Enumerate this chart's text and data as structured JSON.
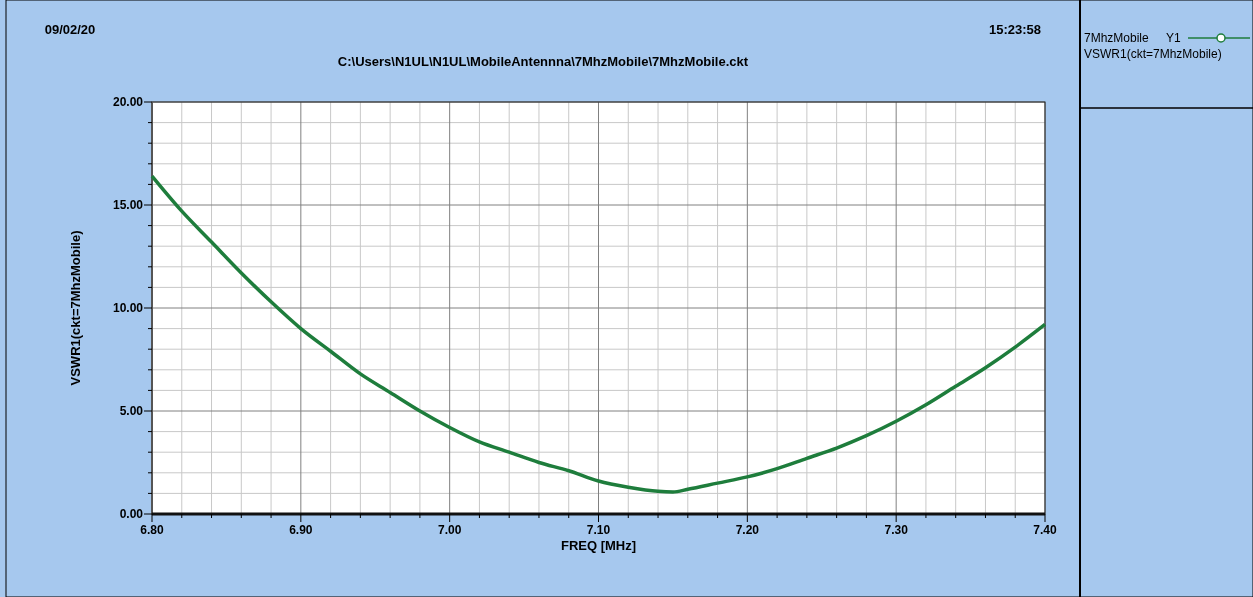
{
  "chart_data": {
    "type": "line",
    "title": "C:\\Users\\N1UL\\N1UL\\MobileAntennna\\7MhzMobile\\7MhzMobile.ckt",
    "annotations": [
      "09/02/20",
      "15:23:58",
      "VSWR1(ckt=7MhzMobile)"
    ],
    "xlabel": "FREQ [MHz]",
    "ylabel": "VSWR1(ckt=7MhzMobile)",
    "legend_title": "7MhzMobile",
    "legend": "right",
    "grid": true,
    "x": [
      6.8,
      6.82,
      6.84,
      6.86,
      6.88,
      6.9,
      6.92,
      6.94,
      6.96,
      6.98,
      7.0,
      7.02,
      7.04,
      7.06,
      7.08,
      7.1,
      7.12,
      7.14,
      7.15,
      7.16,
      7.18,
      7.2,
      7.22,
      7.24,
      7.26,
      7.28,
      7.3,
      7.32,
      7.34,
      7.36,
      7.38,
      7.4
    ],
    "series": [
      {
        "name": "Y1",
        "color": "#1e7d3c",
        "values": [
          16.4,
          14.7,
          13.2,
          11.7,
          10.3,
          9.0,
          7.9,
          6.8,
          5.9,
          5.0,
          4.2,
          3.5,
          3.0,
          2.5,
          2.1,
          1.6,
          1.3,
          1.1,
          1.07,
          1.2,
          1.5,
          1.8,
          2.2,
          2.7,
          3.2,
          3.8,
          4.5,
          5.3,
          6.2,
          7.1,
          8.1,
          9.2
        ]
      }
    ],
    "xlim": [
      6.8,
      7.4
    ],
    "xticks": [
      {
        "value": 6.8,
        "label": "6.80"
      },
      {
        "value": 6.9,
        "label": "6.90"
      },
      {
        "value": 7.0,
        "label": "7.00"
      },
      {
        "value": 7.1,
        "label": "7.10"
      },
      {
        "value": 7.2,
        "label": "7.20"
      },
      {
        "value": 7.3,
        "label": "7.30"
      },
      {
        "value": 7.4,
        "label": "7.40"
      }
    ],
    "ylim": [
      0,
      20
    ],
    "yticks": [
      {
        "value": 0,
        "label": "0.00"
      },
      {
        "value": 5,
        "label": "5.00"
      },
      {
        "value": 10,
        "label": "10.00"
      },
      {
        "value": 15,
        "label": "15.00"
      },
      {
        "value": 20,
        "label": "20.00"
      }
    ]
  }
}
